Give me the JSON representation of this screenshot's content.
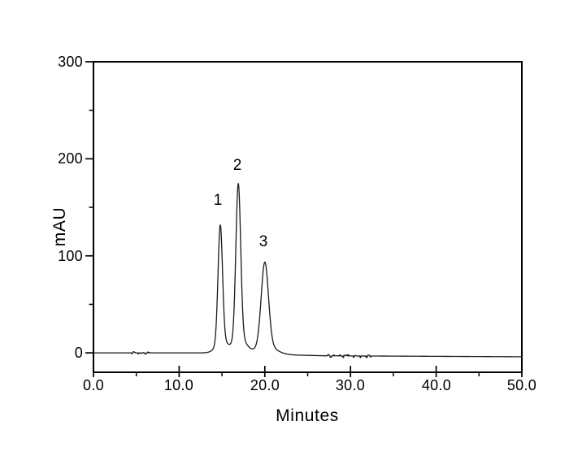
{
  "figure": {
    "background": "#ffffff",
    "axis_color": "#000000",
    "text_color": "#000000"
  },
  "chart_data": {
    "type": "line",
    "title": "",
    "xlabel": "Minutes",
    "ylabel": "mAU",
    "xlim": [
      0,
      50
    ],
    "ylim": [
      -20,
      300
    ],
    "grid": false,
    "legend": "none",
    "frame": "full-box",
    "line_color": "#1a1a1a",
    "x_major_ticks": {
      "values": [
        0,
        10,
        20,
        30,
        40,
        50
      ],
      "labels": [
        "0.0",
        "10.0",
        "20.0",
        "30.0",
        "40.0",
        "50.0"
      ]
    },
    "x_minor_ticks": [
      5,
      15,
      25,
      35,
      45
    ],
    "y_major_ticks": {
      "values": [
        0,
        100,
        200,
        300
      ],
      "labels": [
        "0",
        "100",
        "200",
        "300"
      ]
    },
    "y_minor_ticks": [
      50,
      150,
      250
    ],
    "peaks": [
      {
        "label": "1",
        "rt_min": 14.8,
        "height_mau": 132,
        "sigma_min": 0.26
      },
      {
        "label": "2",
        "rt_min": 16.9,
        "height_mau": 175,
        "sigma_min": 0.28
      },
      {
        "label": "3",
        "rt_min": 20.0,
        "height_mau": 95,
        "sigma_min": 0.42
      }
    ],
    "peak_tailing": {
      "frac": 0.1,
      "offset_min": 0.2,
      "widen": 2.6
    },
    "baseline_mau": [
      [
        0,
        0
      ],
      [
        13.5,
        0
      ],
      [
        22.5,
        -2
      ],
      [
        27,
        -3
      ],
      [
        50,
        -4
      ]
    ],
    "noise_bursts": [
      {
        "start_min": 4.3,
        "end_min": 6.7,
        "amplitude_mau": 1.3
      },
      {
        "start_min": 27.3,
        "end_min": 32.6,
        "amplitude_mau": 1.7
      }
    ]
  }
}
